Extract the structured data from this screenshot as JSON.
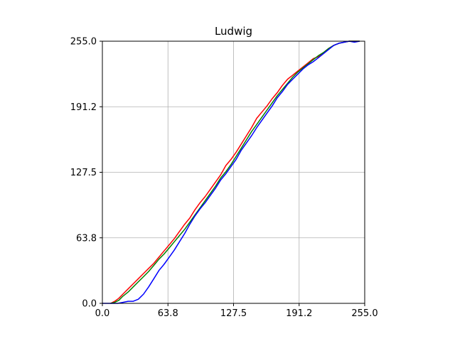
{
  "chart_data": {
    "type": "line",
    "title": "Ludwig",
    "xlabel": "",
    "ylabel": "",
    "xlim": [
      0,
      255
    ],
    "ylim": [
      0,
      255
    ],
    "grid": true,
    "legend": "none",
    "x_ticks": [
      "0.0",
      "63.8",
      "127.5",
      "191.2",
      "255.0"
    ],
    "y_ticks": [
      "0.0",
      "63.8",
      "127.5",
      "191.2",
      "255.0"
    ],
    "tick_values": [
      0,
      63.75,
      127.5,
      191.25,
      255
    ],
    "series": [
      {
        "color": "#ff0000",
        "x": [
          8,
          12,
          16,
          20,
          25,
          30,
          35,
          40,
          45,
          50,
          55,
          60,
          65,
          70,
          75,
          80,
          85,
          90,
          95,
          100,
          105,
          110,
          115,
          120,
          125,
          130,
          135,
          140,
          145,
          150,
          155,
          160,
          165,
          170,
          175,
          180,
          185,
          190,
          195,
          200,
          205,
          210,
          215,
          220,
          225,
          230,
          235,
          240,
          245,
          250
        ],
        "y": [
          0,
          2,
          5,
          9,
          14,
          19,
          24,
          29,
          34,
          39,
          45,
          51,
          57,
          63,
          70,
          77,
          83,
          91,
          98,
          104,
          111,
          118,
          125,
          134,
          140,
          147,
          155,
          163,
          171,
          180,
          186,
          192,
          199,
          205,
          212,
          218,
          222,
          226,
          230,
          234,
          238,
          240,
          244,
          248,
          251,
          253,
          254,
          255,
          255,
          255
        ]
      },
      {
        "color": "#008000",
        "x": [
          8,
          12,
          16,
          20,
          25,
          30,
          35,
          40,
          45,
          50,
          55,
          60,
          65,
          70,
          75,
          80,
          85,
          90,
          95,
          100,
          105,
          110,
          115,
          120,
          125,
          130,
          135,
          140,
          145,
          150,
          155,
          160,
          165,
          170,
          175,
          180,
          185,
          190,
          195,
          200,
          205,
          210,
          215,
          220,
          225,
          230,
          235,
          240,
          245,
          250
        ],
        "y": [
          0,
          1,
          3,
          7,
          11,
          16,
          21,
          26,
          31,
          37,
          43,
          48,
          54,
          60,
          66,
          72,
          79,
          86,
          93,
          100,
          107,
          114,
          122,
          128,
          135,
          143,
          151,
          159,
          167,
          174,
          181,
          188,
          195,
          202,
          208,
          214,
          220,
          225,
          229,
          233,
          237,
          241,
          244,
          248,
          251,
          253,
          254,
          255,
          255,
          255
        ]
      },
      {
        "color": "#0000ff",
        "x": [
          0,
          10,
          15,
          20,
          25,
          30,
          35,
          40,
          45,
          50,
          55,
          60,
          65,
          70,
          75,
          80,
          85,
          90,
          95,
          100,
          105,
          110,
          115,
          120,
          125,
          130,
          135,
          140,
          145,
          150,
          155,
          160,
          165,
          170,
          175,
          180,
          185,
          190,
          195,
          200,
          205,
          210,
          215,
          220,
          225,
          230,
          235,
          240,
          245,
          250
        ],
        "y": [
          0,
          0,
          0,
          1,
          2,
          2,
          4,
          9,
          16,
          24,
          32,
          38,
          45,
          52,
          60,
          68,
          77,
          85,
          92,
          98,
          105,
          112,
          120,
          126,
          133,
          140,
          149,
          156,
          163,
          171,
          178,
          185,
          192,
          200,
          206,
          213,
          218,
          223,
          228,
          232,
          235,
          239,
          243,
          247,
          251,
          253,
          254,
          255,
          254,
          255
        ]
      }
    ]
  }
}
